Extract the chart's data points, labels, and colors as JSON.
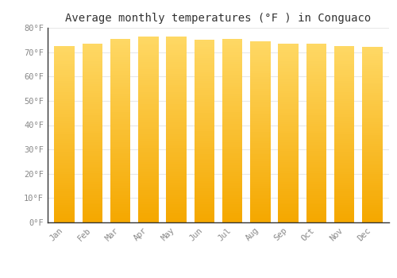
{
  "months": [
    "Jan",
    "Feb",
    "Mar",
    "Apr",
    "May",
    "Jun",
    "Jul",
    "Aug",
    "Sep",
    "Oct",
    "Nov",
    "Dec"
  ],
  "values": [
    72.5,
    73.5,
    75.5,
    76.5,
    76.5,
    75.0,
    75.5,
    74.5,
    73.5,
    73.5,
    72.5,
    72.0
  ],
  "bar_color_bottom": "#F5A800",
  "bar_color_top": "#FFD966",
  "background_color": "#FFFFFF",
  "grid_color": "#E8E8E8",
  "title": "Average monthly temperatures (°F ) in Conguaco",
  "title_fontsize": 10,
  "ylabel_ticks": [
    "0°F",
    "10°F",
    "20°F",
    "30°F",
    "40°F",
    "50°F",
    "60°F",
    "70°F",
    "80°F"
  ],
  "ytick_values": [
    0,
    10,
    20,
    30,
    40,
    50,
    60,
    70,
    80
  ],
  "ylim": [
    0,
    80
  ],
  "tick_fontsize": 7.5,
  "tick_color": "#888888",
  "title_color": "#333333",
  "font_family": "monospace",
  "bar_width": 0.72,
  "spine_color": "#333333"
}
